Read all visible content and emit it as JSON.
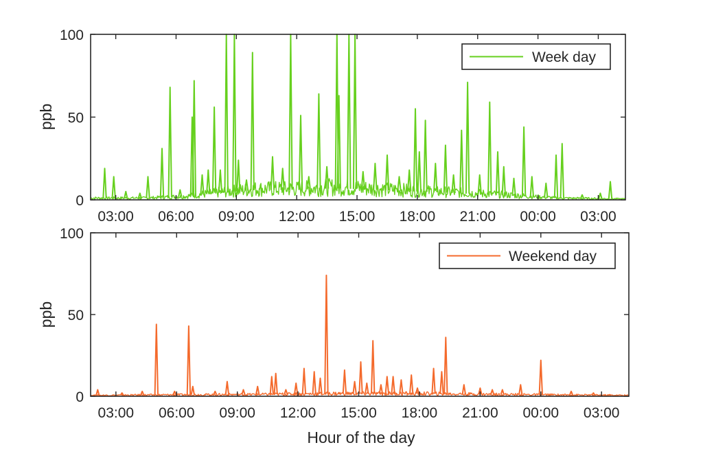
{
  "figure": {
    "xlabel": "Hour of the day"
  },
  "chart_data": [
    {
      "type": "line",
      "name": "weekday",
      "legend": "Week day",
      "legend_position": "top-right",
      "color": "#66d01e",
      "ylabel": "ppb",
      "ylim": [
        0,
        100
      ],
      "yticks": [
        0,
        50,
        100
      ],
      "xlim": [
        1.75,
        28.35
      ],
      "xticks": [
        3,
        6,
        9,
        12,
        15,
        18,
        21,
        24,
        27
      ],
      "xtick_labels": [
        "03:00",
        "06:00",
        "09:00",
        "12:00",
        "15:00",
        "18:00",
        "21:00",
        "00:00",
        "03:00"
      ],
      "baseline": [
        [
          1.75,
          1
        ],
        [
          4.5,
          1
        ],
        [
          6.5,
          2
        ],
        [
          8,
          4
        ],
        [
          10,
          6
        ],
        [
          12,
          6
        ],
        [
          14,
          7
        ],
        [
          16,
          6
        ],
        [
          18,
          5
        ],
        [
          20,
          4
        ],
        [
          22,
          3
        ],
        [
          23.5,
          2
        ],
        [
          25,
          1
        ],
        [
          28.35,
          0.5
        ]
      ],
      "peaks": [
        [
          2.45,
          19
        ],
        [
          2.9,
          14
        ],
        [
          3.5,
          5
        ],
        [
          4.2,
          4
        ],
        [
          4.6,
          14
        ],
        [
          5.3,
          31
        ],
        [
          5.7,
          68
        ],
        [
          6.2,
          6
        ],
        [
          6.8,
          50
        ],
        [
          6.9,
          72
        ],
        [
          7.3,
          15
        ],
        [
          7.6,
          18
        ],
        [
          7.9,
          56
        ],
        [
          8.2,
          18
        ],
        [
          8.5,
          100
        ],
        [
          8.9,
          100
        ],
        [
          9.1,
          24
        ],
        [
          9.5,
          12
        ],
        [
          9.8,
          89
        ],
        [
          10.2,
          8
        ],
        [
          10.8,
          26
        ],
        [
          11.3,
          19
        ],
        [
          11.7,
          100
        ],
        [
          12.2,
          51
        ],
        [
          12.6,
          14
        ],
        [
          13.1,
          64
        ],
        [
          13.5,
          20
        ],
        [
          14.0,
          100
        ],
        [
          14.1,
          63
        ],
        [
          14.6,
          100
        ],
        [
          14.9,
          100
        ],
        [
          15.3,
          17
        ],
        [
          15.9,
          22
        ],
        [
          16.5,
          27
        ],
        [
          17.1,
          14
        ],
        [
          17.6,
          18
        ],
        [
          17.9,
          55
        ],
        [
          18.1,
          29
        ],
        [
          18.4,
          48
        ],
        [
          18.9,
          22
        ],
        [
          19.4,
          33
        ],
        [
          19.8,
          15
        ],
        [
          20.2,
          42
        ],
        [
          20.5,
          71
        ],
        [
          21.1,
          15
        ],
        [
          21.6,
          59
        ],
        [
          22.0,
          29
        ],
        [
          22.3,
          20
        ],
        [
          22.8,
          13
        ],
        [
          23.3,
          44
        ],
        [
          23.7,
          14
        ],
        [
          24.4,
          10
        ],
        [
          24.9,
          27
        ],
        [
          25.2,
          34
        ],
        [
          26.2,
          3
        ],
        [
          27.1,
          4
        ],
        [
          27.6,
          11
        ]
      ]
    },
    {
      "type": "line",
      "name": "weekend",
      "legend": "Weekend day",
      "legend_position": "top-right",
      "color": "#f46a2c",
      "ylabel": "ppb",
      "ylim": [
        0,
        100
      ],
      "yticks": [
        0,
        50,
        100
      ],
      "xlim": [
        1.75,
        28.35
      ],
      "xticks": [
        3,
        6,
        9,
        12,
        15,
        18,
        21,
        24,
        27
      ],
      "xtick_labels": [
        "03:00",
        "06:00",
        "09:00",
        "12:00",
        "15:00",
        "18:00",
        "21:00",
        "00:00",
        "03:00"
      ],
      "xlabel": "Hour of the day",
      "baseline": [
        [
          1.75,
          0.5
        ],
        [
          6,
          0.8
        ],
        [
          10,
          1
        ],
        [
          14,
          1.5
        ],
        [
          18,
          1.5
        ],
        [
          22,
          1
        ],
        [
          28.35,
          0.5
        ]
      ],
      "peaks": [
        [
          2.1,
          4
        ],
        [
          3.3,
          2
        ],
        [
          4.3,
          3
        ],
        [
          5.0,
          44
        ],
        [
          5.9,
          3
        ],
        [
          6.6,
          43
        ],
        [
          6.8,
          6
        ],
        [
          7.9,
          3
        ],
        [
          8.5,
          9
        ],
        [
          9.3,
          4
        ],
        [
          10.0,
          6
        ],
        [
          10.7,
          12
        ],
        [
          10.9,
          14
        ],
        [
          11.4,
          4
        ],
        [
          11.9,
          8
        ],
        [
          12.3,
          17
        ],
        [
          12.8,
          15
        ],
        [
          13.1,
          11
        ],
        [
          13.4,
          74
        ],
        [
          14.3,
          16
        ],
        [
          14.8,
          9
        ],
        [
          15.1,
          21
        ],
        [
          15.4,
          8
        ],
        [
          15.7,
          34
        ],
        [
          16.1,
          7
        ],
        [
          16.4,
          12
        ],
        [
          16.7,
          12
        ],
        [
          17.1,
          10
        ],
        [
          17.6,
          13
        ],
        [
          17.9,
          5
        ],
        [
          18.7,
          17
        ],
        [
          19.1,
          15
        ],
        [
          19.3,
          36
        ],
        [
          20.2,
          7
        ],
        [
          21.0,
          5
        ],
        [
          21.6,
          4
        ],
        [
          22.1,
          4
        ],
        [
          23.0,
          7
        ],
        [
          24.0,
          22
        ],
        [
          25.5,
          3
        ],
        [
          26.6,
          2
        ],
        [
          27.4,
          1
        ]
      ]
    }
  ]
}
